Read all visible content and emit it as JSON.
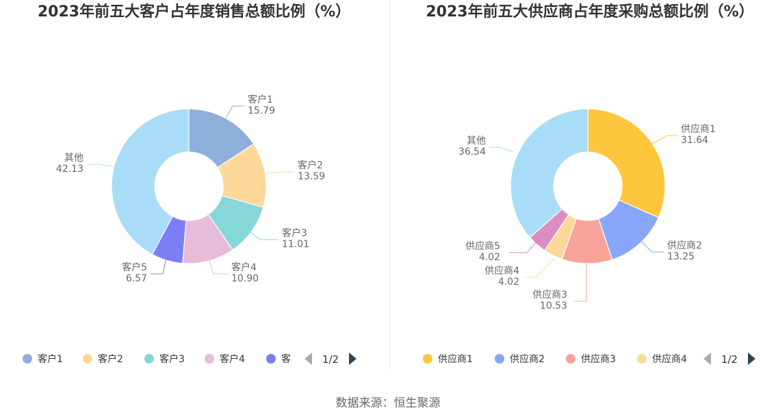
{
  "source": "数据来源：恒生聚源",
  "chart_data": [
    {
      "type": "pie",
      "title": "2023年前五大客户占年度销售总额比例（%）",
      "categories": [
        "客户1",
        "客户2",
        "客户3",
        "客户4",
        "客户5",
        "其他"
      ],
      "values": [
        15.79,
        13.59,
        11.01,
        10.9,
        6.57,
        42.13
      ],
      "labels": [
        "15.79",
        "13.59",
        "11.01",
        "10.90",
        "6.57",
        "42.13"
      ],
      "colors": [
        "#8eaedb",
        "#fdd89a",
        "#86d7d8",
        "#e7bcd9",
        "#7b7ff5",
        "#a9dcf7"
      ],
      "legend": {
        "items": [
          {
            "label": "客户1",
            "color": "#8eaedb"
          },
          {
            "label": "客户2",
            "color": "#fdd89a"
          },
          {
            "label": "客户3",
            "color": "#86d7d8"
          },
          {
            "label": "客户4",
            "color": "#e7bcd9"
          },
          {
            "label": "客",
            "color": "#7b7ff5"
          }
        ],
        "page": "1/2"
      }
    },
    {
      "type": "pie",
      "title": "2023年前五大供应商占年度采购总额比例（%）",
      "categories": [
        "供应商1",
        "供应商2",
        "供应商3",
        "供应商4",
        "供应商5",
        "其他"
      ],
      "values": [
        31.64,
        13.25,
        10.53,
        4.02,
        4.02,
        36.54
      ],
      "labels": [
        "31.64",
        "13.25",
        "10.53",
        "4.02",
        "4.02",
        "36.54"
      ],
      "colors": [
        "#fec63d",
        "#88a7fb",
        "#f8a399",
        "#fdd89a",
        "#dc8bc4",
        "#a9dcf7"
      ],
      "legend": {
        "items": [
          {
            "label": "供应商1",
            "color": "#fec63d"
          },
          {
            "label": "供应商2",
            "color": "#88a7fb"
          },
          {
            "label": "供应商3",
            "color": "#f8a399"
          },
          {
            "label": "供应商4",
            "color": "#fdd89a"
          }
        ],
        "page": "1/2"
      }
    }
  ]
}
